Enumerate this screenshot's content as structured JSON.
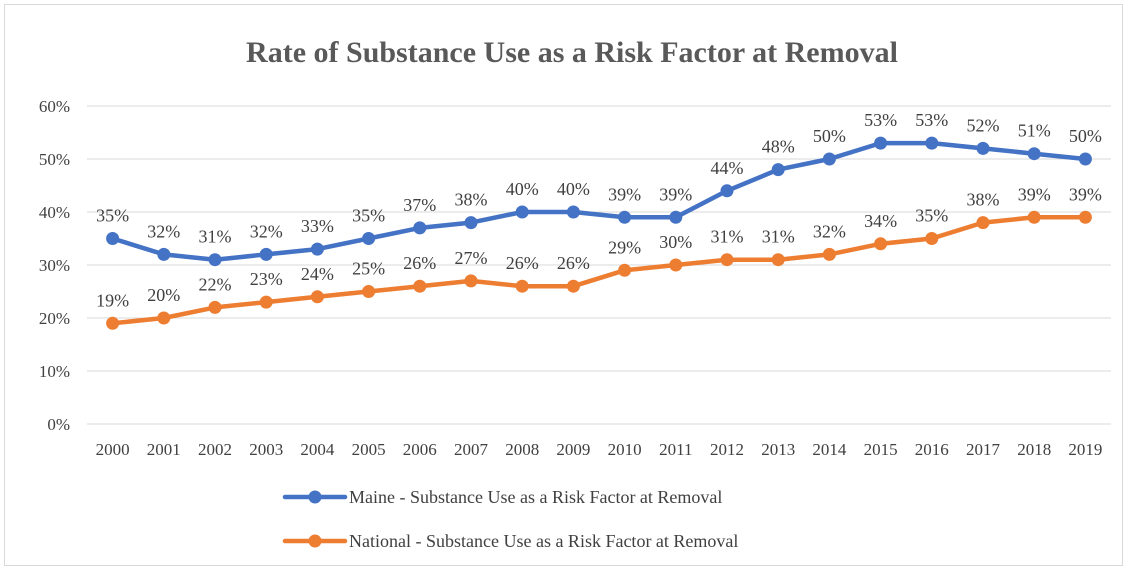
{
  "chart_data": {
    "type": "line",
    "title": "Rate of Substance Use as a Risk Factor at Removal",
    "categories": [
      "2000",
      "2001",
      "2002",
      "2003",
      "2004",
      "2005",
      "2006",
      "2007",
      "2008",
      "2009",
      "2010",
      "2011",
      "2012",
      "2013",
      "2014",
      "2015",
      "2016",
      "2017",
      "2018",
      "2019"
    ],
    "ylim": [
      0,
      60
    ],
    "yticks": [
      "0%",
      "10%",
      "20%",
      "30%",
      "40%",
      "50%",
      "60%"
    ],
    "grid": true,
    "legend_position": "bottom",
    "series": [
      {
        "name": "Maine - Substance Use as a Risk Factor at Removal",
        "color": "#4472C4",
        "values": [
          35,
          32,
          31,
          32,
          33,
          35,
          37,
          38,
          40,
          40,
          39,
          39,
          44,
          48,
          50,
          53,
          53,
          52,
          51,
          50
        ],
        "labels": [
          "35%",
          "32%",
          "31%",
          "32%",
          "33%",
          "35%",
          "37%",
          "38%",
          "40%",
          "40%",
          "39%",
          "39%",
          "44%",
          "48%",
          "50%",
          "53%",
          "53%",
          "52%",
          "51%",
          "50%"
        ]
      },
      {
        "name": "National - Substance Use as a Risk Factor at Removal",
        "color": "#ED7D31",
        "values": [
          19,
          20,
          22,
          23,
          24,
          25,
          26,
          27,
          26,
          26,
          29,
          30,
          31,
          31,
          32,
          34,
          35,
          38,
          39,
          39
        ],
        "labels": [
          "19%",
          "20%",
          "22%",
          "23%",
          "24%",
          "25%",
          "26%",
          "27%",
          "26%",
          "26%",
          "29%",
          "30%",
          "31%",
          "31%",
          "32%",
          "34%",
          "35%",
          "38%",
          "39%",
          "39%"
        ]
      }
    ]
  }
}
